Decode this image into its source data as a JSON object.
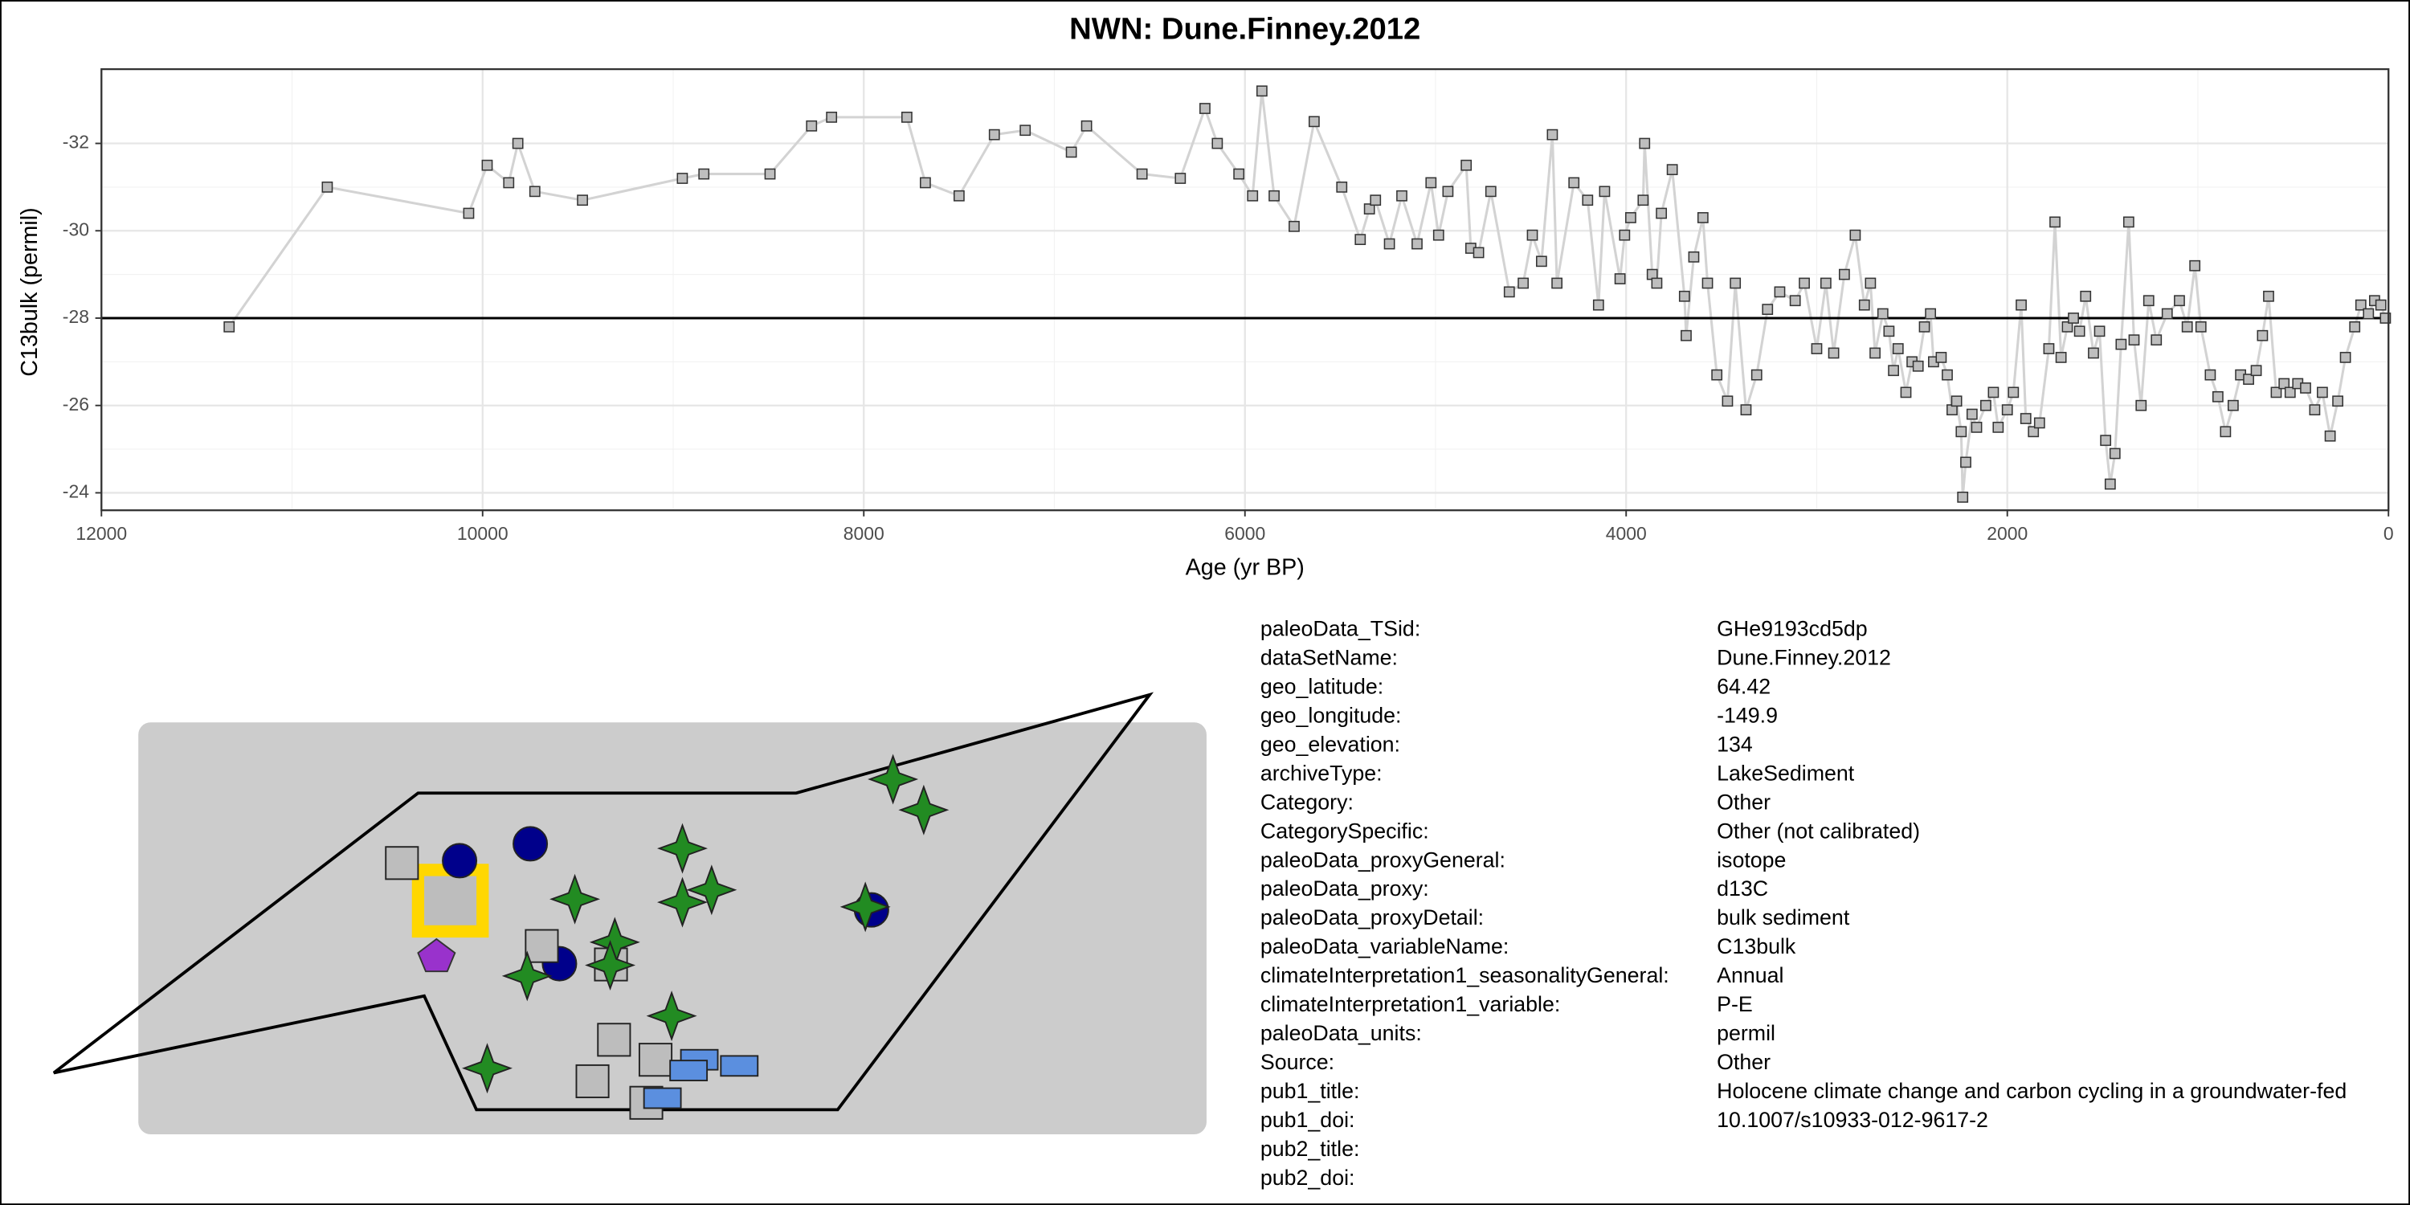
{
  "chart_data": {
    "type": "line",
    "title": "NWN: Dune.Finney.2012",
    "x_label": "Age (yr BP)",
    "y_label": "C13bulk (permil)",
    "x": [
      11330,
      10815,
      10073,
      9976,
      9863,
      9815,
      9726,
      9476,
      8952,
      8839,
      8492,
      8274,
      8169,
      7774,
      7677,
      7500,
      7315,
      7153,
      6911,
      6831,
      6540,
      6339,
      6210,
      6145,
      6032,
      5960,
      5911,
      5847,
      5742,
      5637,
      5492,
      5395,
      5347,
      5315,
      5242,
      5177,
      5097,
      5024,
      4984,
      4935,
      4839,
      4815,
      4774,
      4710,
      4613,
      4540,
      4492,
      4444,
      4387,
      4363,
      4274,
      4202,
      4145,
      4113,
      4032,
      4008,
      3976,
      3911,
      3903,
      3863,
      3839,
      3815,
      3758,
      3694,
      3685,
      3645,
      3597,
      3573,
      3524,
      3468,
      3427,
      3371,
      3315,
      3258,
      3194,
      3113,
      3065,
      3000,
      2952,
      2911,
      2855,
      2798,
      2750,
      2718,
      2694,
      2653,
      2621,
      2597,
      2573,
      2532,
      2500,
      2468,
      2435,
      2403,
      2387,
      2347,
      2315,
      2290,
      2266,
      2242,
      2234,
      2218,
      2185,
      2161,
      2113,
      2073,
      2048,
      2000,
      1968,
      1927,
      1903,
      1863,
      1831,
      1782,
      1750,
      1718,
      1685,
      1653,
      1621,
      1589,
      1548,
      1516,
      1484,
      1460,
      1435,
      1403,
      1363,
      1335,
      1298,
      1258,
      1218,
      1161,
      1097,
      1056,
      1016,
      984,
      935,
      895,
      855,
      815,
      776,
      734,
      694,
      661,
      629,
      589,
      548,
      516,
      476,
      435,
      387,
      347,
      306,
      266,
      226,
      177,
      145,
      105,
      73,
      40,
      16
    ],
    "values": [
      -27.8,
      -31.0,
      -30.4,
      -31.5,
      -31.1,
      -32.0,
      -30.9,
      -30.7,
      -31.2,
      -31.3,
      -31.3,
      -32.4,
      -32.6,
      -32.6,
      -31.1,
      -30.8,
      -32.2,
      -32.3,
      -31.8,
      -32.4,
      -31.3,
      -31.2,
      -32.8,
      -32.0,
      -31.3,
      -30.8,
      -33.2,
      -30.8,
      -30.1,
      -32.5,
      -31.0,
      -29.8,
      -30.5,
      -30.7,
      -29.7,
      -30.8,
      -29.7,
      -31.1,
      -29.9,
      -30.9,
      -31.5,
      -29.6,
      -29.5,
      -30.9,
      -28.6,
      -28.8,
      -29.9,
      -29.3,
      -32.2,
      -28.8,
      -31.1,
      -30.7,
      -28.3,
      -30.9,
      -28.9,
      -29.9,
      -30.3,
      -30.7,
      -32.0,
      -29.0,
      -28.8,
      -30.4,
      -31.4,
      -28.5,
      -27.6,
      -29.4,
      -30.3,
      -28.8,
      -26.7,
      -26.1,
      -28.8,
      -25.9,
      -26.7,
      -28.2,
      -28.6,
      -28.4,
      -28.8,
      -27.3,
      -28.8,
      -27.2,
      -29.0,
      -29.9,
      -28.3,
      -28.8,
      -27.2,
      -28.1,
      -27.7,
      -26.8,
      -27.3,
      -26.3,
      -27.0,
      -26.9,
      -27.8,
      -28.1,
      -27.0,
      -27.1,
      -26.7,
      -25.9,
      -26.1,
      -25.4,
      -23.9,
      -24.7,
      -25.8,
      -25.5,
      -26.0,
      -26.3,
      -25.5,
      -25.9,
      -26.3,
      -28.3,
      -25.7,
      -25.4,
      -25.6,
      -27.3,
      -30.2,
      -27.1,
      -27.8,
      -28.0,
      -27.7,
      -28.5,
      -27.2,
      -27.7,
      -25.2,
      -24.2,
      -24.9,
      -27.4,
      -30.2,
      -27.5,
      -26.0,
      -28.4,
      -27.5,
      -28.1,
      -28.4,
      -27.8,
      -29.2,
      -27.8,
      -26.7,
      -26.2,
      -25.4,
      -26.0,
      -26.7,
      -26.6,
      -26.8,
      -27.6,
      -28.5,
      -26.3,
      -26.5,
      -26.3,
      -26.5,
      -26.4,
      -25.9,
      -26.3,
      -25.3,
      -26.1,
      -27.1,
      -27.8,
      -28.3,
      -28.1,
      -28.4,
      -28.3,
      -28.0
    ],
    "line_color": "#d3d3d3",
    "marker_color": "#bebebe",
    "hline": -28,
    "xlim": [
      12000,
      0
    ],
    "xticks": [
      12000,
      10000,
      8000,
      6000,
      4000,
      2000,
      0
    ],
    "ylim": [
      -23.6,
      -33.7
    ],
    "yticks": [
      -32,
      -30,
      -28,
      -26,
      -24
    ],
    "grid": true
  },
  "metadata": {
    "rows": [
      [
        "paleoData_TSid:",
        "GHe9193cd5dp"
      ],
      [
        "dataSetName:",
        "Dune.Finney.2012"
      ],
      [
        "geo_latitude:",
        "64.42"
      ],
      [
        "geo_longitude:",
        "-149.9"
      ],
      [
        "geo_elevation:",
        "134"
      ],
      [
        "archiveType:",
        "LakeSediment"
      ],
      [
        "Category:",
        "Other"
      ],
      [
        "CategorySpecific:",
        "Other (not calibrated)"
      ],
      [
        "paleoData_proxyGeneral:",
        "isotope"
      ],
      [
        "paleoData_proxy:",
        "d13C"
      ],
      [
        "paleoData_proxyDetail:",
        "bulk sediment"
      ],
      [
        "paleoData_variableName:",
        "C13bulk"
      ],
      [
        "climateInterpretation1_seasonalityGeneral:",
        "Annual"
      ],
      [
        "climateInterpretation1_variable:",
        "P-E"
      ],
      [
        "paleoData_units:",
        "permil"
      ],
      [
        "Source:",
        "Other"
      ],
      [
        "pub1_title:",
        "Holocene climate change and carbon cycling in a groundwater-fed"
      ],
      [
        "pub1_doi:",
        "10.1007/s10933-012-9617-2"
      ],
      [
        "pub2_title:",
        ""
      ],
      [
        "pub2_doi:",
        ""
      ]
    ]
  }
}
